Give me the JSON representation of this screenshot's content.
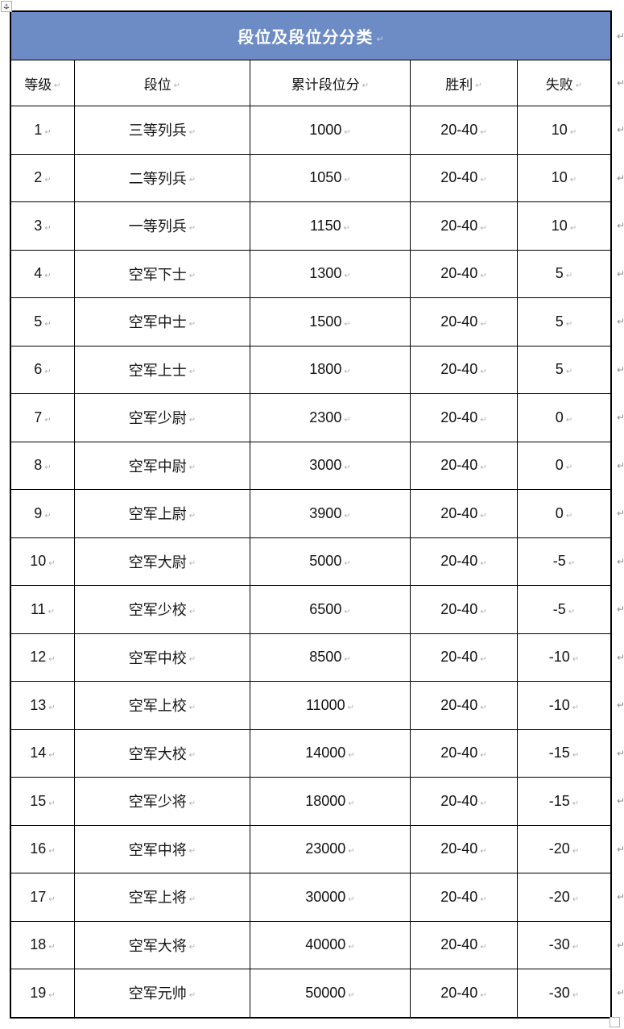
{
  "table": {
    "title": "段位及段位分分类",
    "columns": [
      "等级",
      "段位",
      "累计段位分",
      "胜利",
      "失败"
    ],
    "rows": [
      [
        "1",
        "三等列兵",
        "1000",
        "20-40",
        "10"
      ],
      [
        "2",
        "二等列兵",
        "1050",
        "20-40",
        "10"
      ],
      [
        "3",
        "一等列兵",
        "1150",
        "20-40",
        "10"
      ],
      [
        "4",
        "空军下士",
        "1300",
        "20-40",
        "5"
      ],
      [
        "5",
        "空军中士",
        "1500",
        "20-40",
        "5"
      ],
      [
        "6",
        "空军上士",
        "1800",
        "20-40",
        "5"
      ],
      [
        "7",
        "空军少尉",
        "2300",
        "20-40",
        "0"
      ],
      [
        "8",
        "空军中尉",
        "3000",
        "20-40",
        "0"
      ],
      [
        "9",
        "空军上尉",
        "3900",
        "20-40",
        "0"
      ],
      [
        "10",
        "空军大尉",
        "5000",
        "20-40",
        "-5"
      ],
      [
        "11",
        "空军少校",
        "6500",
        "20-40",
        "-5"
      ],
      [
        "12",
        "空军中校",
        "8500",
        "20-40",
        "-10"
      ],
      [
        "13",
        "空军上校",
        "11000",
        "20-40",
        "-10"
      ],
      [
        "14",
        "空军大校",
        "14000",
        "20-40",
        "-15"
      ],
      [
        "15",
        "空军少将",
        "18000",
        "20-40",
        "-15"
      ],
      [
        "16",
        "空军中将",
        "23000",
        "20-40",
        "-20"
      ],
      [
        "17",
        "空军上将",
        "30000",
        "20-40",
        "-20"
      ],
      [
        "18",
        "空军大将",
        "40000",
        "20-40",
        "-30"
      ],
      [
        "19",
        "空军元帅",
        "50000",
        "20-40",
        "-30"
      ]
    ],
    "marks": {
      "end_of_cell": "↵",
      "end_of_row": "↵"
    },
    "colors": {
      "title_bg": "#6d8cc6",
      "title_text": "#ffffff",
      "border": "#000000",
      "mark_gray": "#8f8f8f"
    },
    "icons": {
      "move_handle": "four-way-arrow-icon",
      "resize_handle": "square-resize-icon"
    }
  }
}
